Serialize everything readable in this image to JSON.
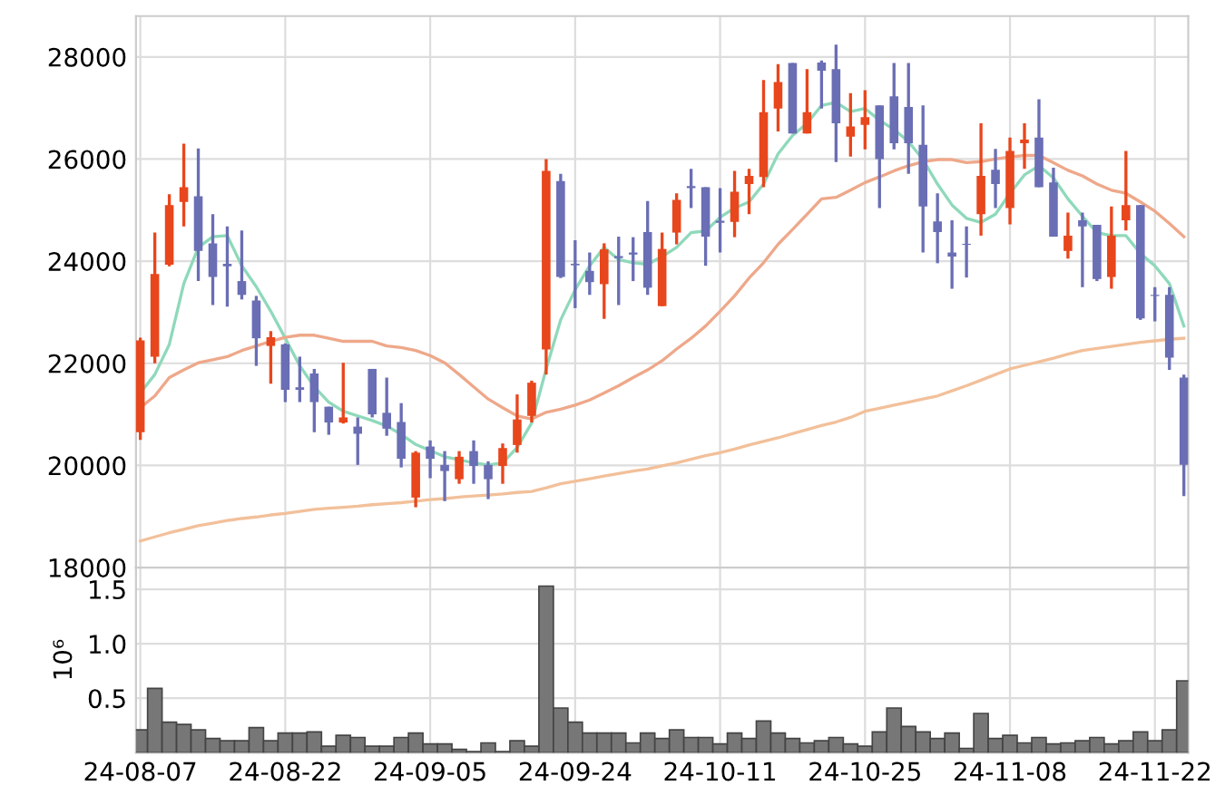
{
  "chart_data": [
    {
      "type": "candlestick",
      "categories": [
        null,
        null,
        null,
        null,
        null,
        null,
        null,
        null,
        null,
        null,
        null,
        null,
        null,
        null,
        null,
        null,
        null,
        null,
        null,
        null,
        null,
        null,
        null,
        null,
        null,
        null,
        null,
        null,
        null,
        null,
        null,
        null,
        null,
        null,
        null,
        null,
        null,
        null,
        null,
        null,
        null,
        null,
        null,
        null,
        null,
        null,
        null,
        null,
        null,
        null,
        null,
        null,
        null,
        null,
        null,
        null,
        null,
        null,
        null,
        null,
        null,
        null,
        null,
        null,
        null,
        null,
        null,
        null,
        null,
        null,
        null,
        null,
        null
      ],
      "ohlc": [
        [
          20650,
          22500,
          20500,
          22450
        ],
        [
          22130,
          24560,
          22000,
          23750
        ],
        [
          23930,
          25310,
          23900,
          25100
        ],
        [
          25160,
          26300,
          24680,
          25450
        ],
        [
          25270,
          26210,
          23610,
          24200
        ],
        [
          24350,
          24920,
          23140,
          23690
        ],
        [
          23950,
          24680,
          23110,
          23900
        ],
        [
          23610,
          24600,
          23250,
          23340
        ],
        [
          23230,
          23320,
          21950,
          22490
        ],
        [
          22340,
          22630,
          21600,
          22510
        ],
        [
          22370,
          22390,
          21240,
          21480
        ],
        [
          21530,
          22130,
          21240,
          21480
        ],
        [
          21800,
          21890,
          20650,
          21240
        ],
        [
          21150,
          21150,
          20600,
          20840
        ],
        [
          20840,
          22010,
          20820,
          20940
        ],
        [
          20760,
          20940,
          20010,
          20620
        ],
        [
          21890,
          21890,
          20940,
          21000
        ],
        [
          21030,
          21720,
          20580,
          20720
        ],
        [
          20850,
          21220,
          19960,
          20130
        ],
        [
          19370,
          20280,
          19180,
          20250
        ],
        [
          20370,
          20490,
          19750,
          20130
        ],
        [
          20010,
          20280,
          19300,
          19890
        ],
        [
          19730,
          20280,
          19640,
          20170
        ],
        [
          20280,
          20490,
          19640,
          19990
        ],
        [
          20010,
          20080,
          19340,
          19730
        ],
        [
          19990,
          20430,
          19640,
          20340
        ],
        [
          20400,
          21390,
          20250,
          20900
        ],
        [
          20970,
          21660,
          20840,
          21620
        ],
        [
          22270,
          26000,
          21780,
          25770
        ],
        [
          25570,
          25710,
          23670,
          23690
        ],
        [
          23950,
          24410,
          23080,
          23920
        ],
        [
          23810,
          24170,
          23340,
          23590
        ],
        [
          23550,
          24350,
          22870,
          24230
        ],
        [
          24100,
          24480,
          23140,
          24060
        ],
        [
          24170,
          24470,
          23610,
          24130
        ],
        [
          24570,
          25180,
          23340,
          23480
        ],
        [
          23120,
          24560,
          23120,
          24240
        ],
        [
          24560,
          25330,
          24330,
          25200
        ],
        [
          25470,
          25810,
          25040,
          25430
        ],
        [
          25450,
          25450,
          23910,
          24480
        ],
        [
          24790,
          25430,
          24170,
          24750
        ],
        [
          24770,
          25770,
          24470,
          25360
        ],
        [
          25510,
          25810,
          24920,
          25670
        ],
        [
          25650,
          27550,
          25450,
          26920
        ],
        [
          26990,
          27860,
          26540,
          27510
        ],
        [
          27880,
          27880,
          26500,
          26500
        ],
        [
          26500,
          27760,
          26500,
          26920
        ],
        [
          27890,
          27930,
          26990,
          27730
        ],
        [
          27760,
          28240,
          25940,
          26700
        ],
        [
          26440,
          27290,
          26050,
          26640
        ],
        [
          26670,
          27350,
          26190,
          26820
        ],
        [
          27050,
          27050,
          25040,
          26000
        ],
        [
          27230,
          27880,
          26190,
          26310
        ],
        [
          27020,
          27880,
          25710,
          26310
        ],
        [
          26280,
          27050,
          24170,
          25070
        ],
        [
          24780,
          25330,
          23960,
          24570
        ],
        [
          24170,
          24800,
          23460,
          24090
        ],
        [
          24340,
          24680,
          23680,
          24320
        ],
        [
          24920,
          26700,
          24500,
          25670
        ],
        [
          25790,
          26200,
          25040,
          25510
        ],
        [
          25040,
          26420,
          24720,
          26160
        ],
        [
          26310,
          26700,
          25810,
          26380
        ],
        [
          26420,
          27170,
          25450,
          25450
        ],
        [
          25540,
          25830,
          24480,
          24480
        ],
        [
          24200,
          24950,
          24050,
          24500
        ],
        [
          24800,
          24950,
          23490,
          24680
        ],
        [
          24710,
          24710,
          23610,
          23650
        ],
        [
          23690,
          25070,
          23460,
          24500
        ],
        [
          24800,
          26160,
          24600,
          25100
        ],
        [
          25100,
          25100,
          22850,
          22880
        ],
        [
          23340,
          23490,
          22820,
          23320
        ],
        [
          23340,
          23490,
          21870,
          22110
        ],
        [
          21720,
          21780,
          19400,
          20010
        ]
      ],
      "colors": [
        "#e8461c",
        "#e8461c",
        "#e8461c",
        "#e8461c",
        "#6a6eb4",
        "#6a6eb4",
        "#6a6eb4",
        "#6a6eb4",
        "#6a6eb4",
        "#e8461c",
        "#6a6eb4",
        "#6a6eb4",
        "#6a6eb4",
        "#6a6eb4",
        "#e8461c",
        "#6a6eb4",
        "#6a6eb4",
        "#6a6eb4",
        "#6a6eb4",
        "#e8461c",
        "#6a6eb4",
        "#6a6eb4",
        "#e8461c",
        "#6a6eb4",
        "#6a6eb4",
        "#e8461c",
        "#e8461c",
        "#e8461c",
        "#e8461c",
        "#6a6eb4",
        "#6a6eb4",
        "#6a6eb4",
        "#e8461c",
        "#6a6eb4",
        "#6a6eb4",
        "#6a6eb4",
        "#e8461c",
        "#e8461c",
        "#6a6eb4",
        "#6a6eb4",
        "#6a6eb4",
        "#e8461c",
        "#e8461c",
        "#e8461c",
        "#e8461c",
        "#6a6eb4",
        "#e8461c",
        "#6a6eb4",
        "#6a6eb4",
        "#e8461c",
        "#e8461c",
        "#6a6eb4",
        "#6a6eb4",
        "#6a6eb4",
        "#6a6eb4",
        "#6a6eb4",
        "#6a6eb4",
        "#6a6eb4",
        "#e8461c",
        "#6a6eb4",
        "#e8461c",
        "#e8461c",
        "#6a6eb4",
        "#6a6eb4",
        "#e8461c",
        "#6a6eb4",
        "#6a6eb4",
        "#e8461c",
        "#e8461c",
        "#6a6eb4",
        "#6a6eb4",
        "#6a6eb4",
        "#6a6eb4"
      ],
      "series": [
        {
          "type": "line",
          "color": "#8fd9bb",
          "values": [
            21420,
            21780,
            22370,
            23560,
            24270,
            24480,
            24500,
            23910,
            23500,
            23020,
            22490,
            21950,
            21540,
            21240,
            21060,
            20970,
            20880,
            20770,
            20610,
            20410,
            20290,
            20170,
            20110,
            20050,
            20010,
            20050,
            20350,
            20830,
            21890,
            22850,
            23440,
            23910,
            24270,
            24030,
            23970,
            23940,
            24090,
            24270,
            24560,
            24590,
            24860,
            25040,
            25160,
            25510,
            26100,
            26460,
            26700,
            27050,
            27110,
            26930,
            26990,
            26760,
            26580,
            26340,
            25990,
            25510,
            25100,
            24840,
            24760,
            24920,
            25330,
            25690,
            25870,
            25630,
            25220,
            24880,
            24560,
            24500,
            24500,
            24150,
            23910,
            23560,
            22730
          ]
        },
        {
          "type": "line",
          "color": "#eea88a",
          "values": [
            21130,
            21360,
            21720,
            21870,
            22010,
            22070,
            22130,
            22250,
            22340,
            22430,
            22510,
            22550,
            22550,
            22490,
            22430,
            22430,
            22430,
            22340,
            22310,
            22250,
            22150,
            22010,
            21780,
            21540,
            21300,
            21130,
            20970,
            20910,
            21040,
            21100,
            21180,
            21280,
            21420,
            21560,
            21720,
            21870,
            22050,
            22280,
            22490,
            22730,
            23020,
            23320,
            23670,
            23970,
            24330,
            24620,
            24920,
            25220,
            25250,
            25390,
            25540,
            25650,
            25770,
            25870,
            25950,
            25990,
            25990,
            25930,
            25950,
            26000,
            26040,
            26070,
            26070,
            25930,
            25780,
            25670,
            25510,
            25390,
            25330,
            25160,
            24980,
            24740,
            24480
          ]
        },
        {
          "type": "line",
          "color": "#f2c09a",
          "values": [
            18520,
            18600,
            18680,
            18750,
            18820,
            18870,
            18920,
            18960,
            18990,
            19030,
            19060,
            19100,
            19140,
            19160,
            19180,
            19200,
            19230,
            19250,
            19270,
            19300,
            19330,
            19350,
            19380,
            19400,
            19420,
            19440,
            19470,
            19490,
            19560,
            19640,
            19690,
            19740,
            19790,
            19840,
            19890,
            19930,
            19990,
            20050,
            20120,
            20190,
            20250,
            20320,
            20400,
            20470,
            20540,
            20620,
            20700,
            20780,
            20850,
            20940,
            21060,
            21120,
            21180,
            21240,
            21300,
            21360,
            21460,
            21560,
            21670,
            21780,
            21890,
            21960,
            22030,
            22100,
            22180,
            22250,
            22290,
            22330,
            22370,
            22410,
            22440,
            22470,
            22490
          ]
        }
      ],
      "ylim": [
        18000,
        28800
      ],
      "yticks": [
        18000,
        20000,
        22000,
        24000,
        26000,
        28000
      ],
      "grid": true,
      "tick_labels": "y"
    },
    {
      "type": "bar",
      "categories": [
        "24-08-07",
        null,
        null,
        null,
        null,
        null,
        null,
        null,
        null,
        null,
        "24-08-22",
        null,
        null,
        null,
        null,
        null,
        null,
        null,
        null,
        null,
        "24-09-05",
        null,
        null,
        null,
        null,
        null,
        null,
        null,
        null,
        null,
        "24-09-24",
        null,
        null,
        null,
        null,
        null,
        null,
        null,
        null,
        null,
        "24-10-11",
        null,
        null,
        null,
        null,
        null,
        null,
        null,
        null,
        null,
        "24-10-25",
        null,
        null,
        null,
        null,
        null,
        null,
        null,
        null,
        null,
        "24-11-08",
        null,
        null,
        null,
        null,
        null,
        null,
        null,
        null,
        null,
        "24-11-22",
        null,
        null
      ],
      "values": [
        0.21,
        0.59,
        0.28,
        0.26,
        0.21,
        0.13,
        0.11,
        0.11,
        0.23,
        0.11,
        0.18,
        0.18,
        0.19,
        0.06,
        0.16,
        0.14,
        0.06,
        0.06,
        0.14,
        0.18,
        0.08,
        0.08,
        0.03,
        0.01,
        0.09,
        0.01,
        0.11,
        0.06,
        1.53,
        0.41,
        0.28,
        0.18,
        0.18,
        0.18,
        0.09,
        0.18,
        0.13,
        0.21,
        0.14,
        0.14,
        0.08,
        0.18,
        0.13,
        0.29,
        0.18,
        0.13,
        0.09,
        0.11,
        0.14,
        0.08,
        0.06,
        0.19,
        0.41,
        0.24,
        0.19,
        0.13,
        0.18,
        0.04,
        0.36,
        0.13,
        0.16,
        0.09,
        0.14,
        0.08,
        0.09,
        0.11,
        0.14,
        0.08,
        0.11,
        0.19,
        0.11,
        0.21,
        0.66
      ],
      "color": "#777777",
      "ylabel": "10⁶",
      "ylim": [
        0,
        1.7
      ],
      "yticks": [
        {
          "value": 0.5,
          "label": "0.5"
        },
        {
          "value": 1.0,
          "label": "1.0"
        },
        {
          "value": 1.5,
          "label": "1.5"
        }
      ],
      "grid": true
    }
  ]
}
